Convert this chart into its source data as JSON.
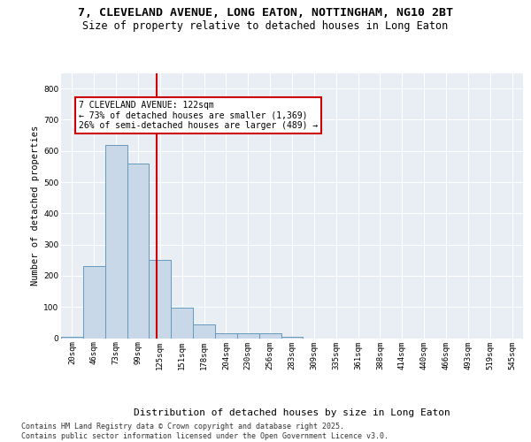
{
  "title1": "7, CLEVELAND AVENUE, LONG EATON, NOTTINGHAM, NG10 2BT",
  "title2": "Size of property relative to detached houses in Long Eaton",
  "xlabel": "Distribution of detached houses by size in Long Eaton",
  "ylabel": "Number of detached properties",
  "footer": "Contains HM Land Registry data © Crown copyright and database right 2025.\nContains public sector information licensed under the Open Government Licence v3.0.",
  "annotation_line1": "7 CLEVELAND AVENUE: 122sqm",
  "annotation_line2": "← 73% of detached houses are smaller (1,369)",
  "annotation_line3": "26% of semi-detached houses are larger (489) →",
  "bins": [
    "20sqm",
    "46sqm",
    "73sqm",
    "99sqm",
    "125sqm",
    "151sqm",
    "178sqm",
    "204sqm",
    "230sqm",
    "256sqm",
    "283sqm",
    "309sqm",
    "335sqm",
    "361sqm",
    "388sqm",
    "414sqm",
    "440sqm",
    "466sqm",
    "493sqm",
    "519sqm",
    "545sqm"
  ],
  "values": [
    5,
    230,
    620,
    560,
    250,
    98,
    45,
    15,
    15,
    15,
    5,
    0,
    0,
    0,
    0,
    0,
    0,
    0,
    0,
    0,
    0
  ],
  "bar_color": "#c8d8e8",
  "bar_edge_color": "#6699bb",
  "vline_x": 3.85,
  "vline_color": "#cc0000",
  "plot_bg_color": "#e8eef4",
  "ylim": [
    0,
    850
  ],
  "yticks": [
    0,
    100,
    200,
    300,
    400,
    500,
    600,
    700,
    800
  ],
  "annotation_box_color": "#cc0000",
  "title_fontsize": 9.5,
  "subtitle_fontsize": 8.5,
  "ylabel_fontsize": 7.5,
  "xlabel_fontsize": 8,
  "tick_fontsize": 6.5,
  "footer_fontsize": 6,
  "ann_fontsize": 7
}
